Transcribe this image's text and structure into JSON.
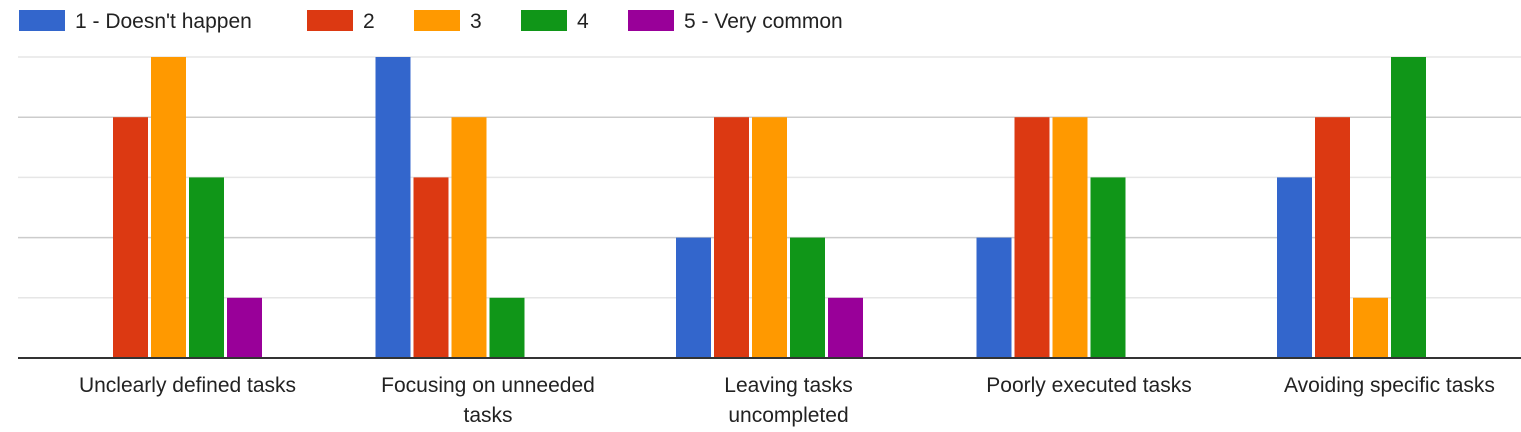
{
  "chart_data": {
    "type": "bar",
    "title": "",
    "xlabel": "",
    "ylabel": "",
    "categories": [
      [
        "Unclearly defined tasks"
      ],
      [
        "Focusing on unneeded",
        "tasks"
      ],
      [
        "Leaving tasks",
        "uncompleted"
      ],
      [
        "Poorly executed tasks"
      ],
      [
        "Avoiding specific tasks"
      ]
    ],
    "series": [
      {
        "name": "1 - Doesn't happen",
        "color": "#3366cc",
        "values": [
          0,
          5,
          2,
          2,
          3
        ]
      },
      {
        "name": "2",
        "color": "#dc3912",
        "values": [
          4,
          3,
          4,
          4,
          4
        ]
      },
      {
        "name": "3",
        "color": "#ff9900",
        "values": [
          5,
          4,
          4,
          4,
          1
        ]
      },
      {
        "name": "4",
        "color": "#109618",
        "values": [
          3,
          1,
          2,
          3,
          5
        ]
      },
      {
        "name": "5 - Very common",
        "color": "#990099",
        "values": [
          1,
          0,
          1,
          0,
          0
        ]
      }
    ],
    "ylim": [
      0,
      5
    ],
    "grid": true,
    "legend_position": "top-left"
  }
}
